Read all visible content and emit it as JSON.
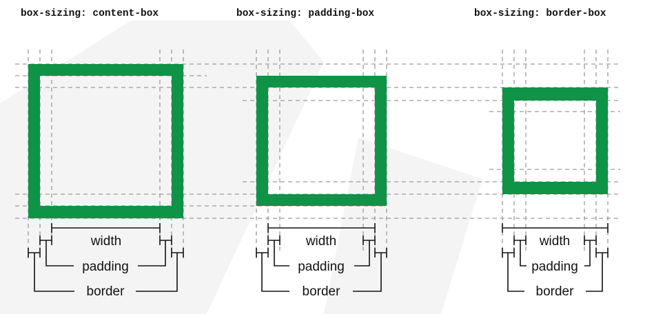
{
  "diagrams": [
    {
      "title": "box-sizing: content-box",
      "labels": {
        "width": "width",
        "padding": "padding",
        "border": "border"
      }
    },
    {
      "title": "box-sizing: padding-box",
      "labels": {
        "width": "width",
        "padding": "padding",
        "border": "border"
      }
    },
    {
      "title": "box-sizing: border-box",
      "labels": {
        "width": "width",
        "padding": "padding",
        "border": "border"
      }
    }
  ],
  "colors": {
    "border_fill": "#0f9347",
    "guide_line": "#9a9a9a",
    "measure_line": "#111111",
    "background_watermark": "#f3f3f3"
  }
}
